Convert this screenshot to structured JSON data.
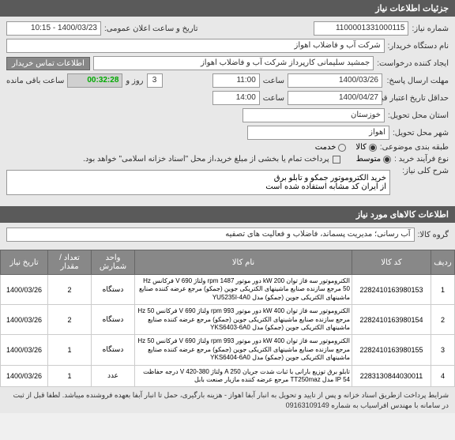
{
  "header": {
    "title": "جزئیات اطلاعات نیاز"
  },
  "form": {
    "need_number_label": "شماره نیاز:",
    "need_number": "1100001331000115",
    "announce_label": "تاریخ و ساعت اعلان عمومی:",
    "announce_value": "1400/03/23 - 10:15",
    "buyer_org_label": "نام دستگاه خریدار:",
    "buyer_org": "شرکت آب و فاضلاب اهواز",
    "creator_label": "ایجاد کننده درخواست:",
    "creator": "جمشید سلیمانی کارپرداز شرکت آب و فاضلاب اهواز",
    "contact_btn": "اطلاعات تماس خریدار",
    "deadline_label": "مهلت ارسال پاسخ:",
    "until_label": "تا تاریخ:",
    "deadline_date": "1400/03/26",
    "hour_label": "ساعت",
    "deadline_hour": "11:00",
    "day_label": "روز و",
    "day_val": "3",
    "remain_time": "00:32:28",
    "remain_label": "ساعت باقی مانده",
    "validity_label": "حداقل تاریخ اعتبار قیمتها:",
    "validity_until": "تا تاریخ:",
    "validity_date": "1400/04/27",
    "validity_hour": "14:00",
    "delivery_state_label": "استان محل تحویل:",
    "delivery_state": "خوزستان",
    "delivery_city_label": "شهر محل تحویل:",
    "delivery_city": "اهواز",
    "budget_label": "طبقه بندی موضوعی:",
    "budget_goods": "کالا",
    "budget_service": "خدمت",
    "process_label": "نوع فرآیند خرید :",
    "process_medium": "متوسط",
    "payment_note": "پرداخت تمام یا بخشی از مبلغ خرید،از محل \"اسناد خزانه اسلامی\" خواهد بود.",
    "desc_label": "شرح کلی نیاز:",
    "desc_text": "خرید الکتروموتور جمکو و تابلو برق\nاز ایران کد مشابه استفاده شده است"
  },
  "goods_header": "اطلاعات کالاهای مورد نیاز",
  "goods_group_label": "گروه کالا:",
  "goods_group": "آب رسانی؛ مدیریت پسماند، فاضلاب و فعالیت های تصفیه",
  "table": {
    "headers": {
      "row": "ردیف",
      "code": "کد کالا",
      "name": "نام کالا",
      "unit": "واحد شمارش",
      "qty": "تعداد / مقدار",
      "date": "تاریخ نیاز"
    },
    "rows": [
      {
        "idx": "1",
        "code": "2282410163980153",
        "name": "الکتروموتور سه فاز توان kW 200 دور موتور rpm 1487 ولتاژ V 690 فرکانس Hz 50 مرجع سازنده صنایع ماشینهای الکتریکی جوین (جمکو) مرجع عرضه کننده صنایع ماشینهای الکتریکی جوین (جمکو) مدل YU5235I-4A0",
        "unit": "دستگاه",
        "qty": "2",
        "date": "1400/03/26"
      },
      {
        "idx": "2",
        "code": "2282410163980154",
        "name": "الکتروموتور سه فاز توان kW 400 دور موتور rpm 993 ولتاژ V 690 فرکانس Hz 50 مرجع سازنده صنایع ماشینهای الکتریکی جوین (جمکو) مرجع عرضه کننده صنایع ماشینهای الکتریکی جوین (جمکو) مدل YKS6403-6A0",
        "unit": "دستگاه",
        "qty": "2",
        "date": "1400/03/26"
      },
      {
        "idx": "3",
        "code": "2282410163980155",
        "name": "الکتروموتور سه فاز توان kW 400 دور موتور rpm 993 ولتاژ V 690 فرکانس Hz 50 مرجع سازنده صنایع ماشینهای الکتریکی جوین (جمکو) مرجع عرضه کننده صنایع ماشینهای الکتریکی جوین (جمکو) مدل YKS6404-6A0",
        "unit": "دستگاه",
        "qty": "1",
        "date": "1400/03/26"
      },
      {
        "idx": "4",
        "code": "2283130844030011",
        "name": "تابلو برق توزیع بارانی با ثبات شدت جریان A 250 ولتاژ 380-420 V درجه حفاظت IP 54 مدل TT250maz مرجع عرضه کننده مازیار صنعت بابل",
        "unit": "عدد",
        "qty": "1",
        "date": "1400/03/26"
      }
    ]
  },
  "footer_note": "شرایط پرداخت ازطریق اسناد خزانه و پس از تایید  و تحویل به انبار آبفا اهواز - هزینه بارگیری، حمل تا انبار آبفا بعهده فروشنده میباشد. لطفا قبل از ثبت در سامانه با مهندس افراسیاب  به شماره 09163109149"
}
